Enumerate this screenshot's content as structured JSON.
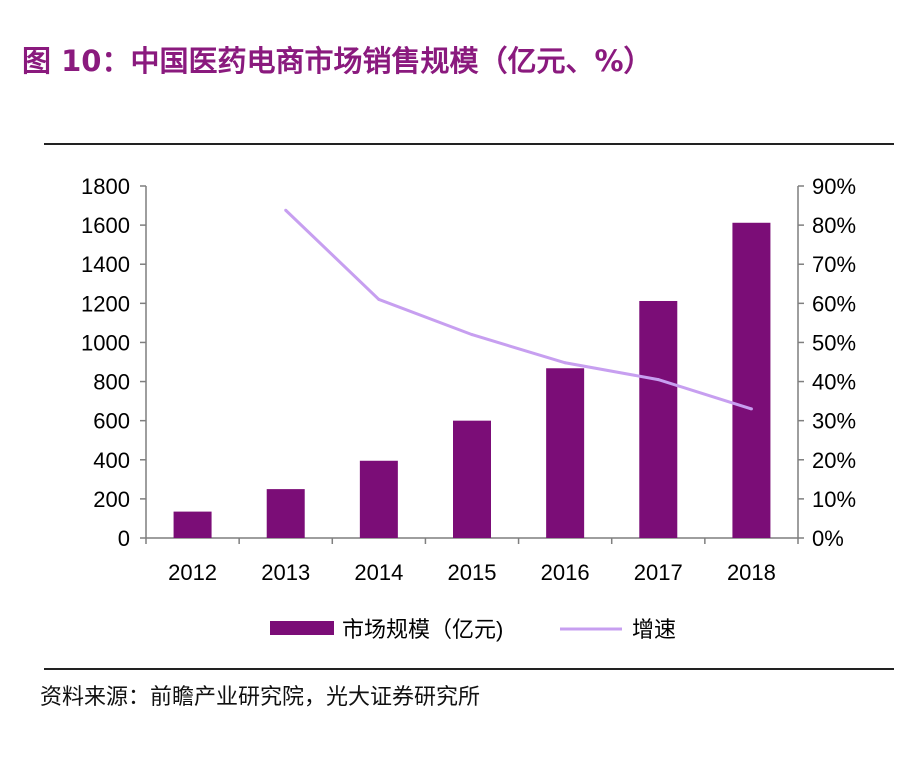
{
  "title": "图 10：中国医药电商市场销售规模（亿元、%）",
  "source": "资料来源：前瞻产业研究院，光大证券研究所",
  "colors": {
    "bar": "#7b0d77",
    "line": "#c79ff0",
    "title": "#8a1a7e"
  },
  "chart_data": {
    "type": "bar",
    "categories": [
      "2012",
      "2013",
      "2014",
      "2015",
      "2016",
      "2017",
      "2018"
    ],
    "series": [
      {
        "name": "市场规模（亿元)",
        "type": "bar",
        "axis": "left",
        "values": [
          135,
          250,
          395,
          600,
          868,
          1212,
          1612
        ]
      },
      {
        "name": "增速",
        "type": "line",
        "axis": "right",
        "values": [
          null,
          0.838,
          0.61,
          0.52,
          0.448,
          0.405,
          0.33
        ]
      }
    ],
    "y_left": {
      "min": 0,
      "max": 1800,
      "ticks": [
        "0",
        "200",
        "400",
        "600",
        "800",
        "1000",
        "1200",
        "1400",
        "1600",
        "1800"
      ]
    },
    "y_right": {
      "min": 0,
      "max": 0.9,
      "ticks": [
        "0%",
        "10%",
        "20%",
        "30%",
        "40%",
        "50%",
        "60%",
        "70%",
        "80%",
        "90%"
      ]
    },
    "grid": false,
    "legend_position": "bottom"
  }
}
